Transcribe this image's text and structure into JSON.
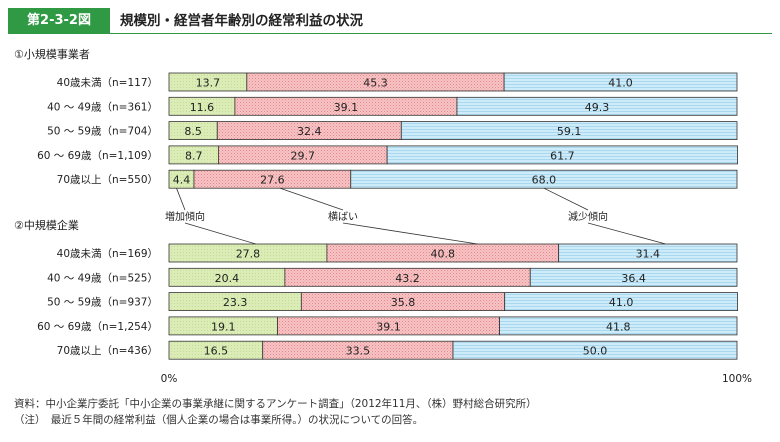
{
  "figure": {
    "tag": "第2-3-2図",
    "title": "規模別・経営者年齢別の経常利益の状況"
  },
  "chart_data": {
    "type": "bar",
    "orientation": "horizontal",
    "stacked": "100%",
    "xlim": [
      0,
      100
    ],
    "x_tick_labels": [
      "0%",
      "100%"
    ],
    "grid": false,
    "series": [
      {
        "name": "増加傾向",
        "color": "#d7eab0"
      },
      {
        "name": "横ばい",
        "color": "#f4b4b6"
      },
      {
        "name": "減少傾向",
        "color": "#bfe3f5"
      }
    ],
    "panels": [
      {
        "title": "①小規模事業者",
        "categories": [
          "40歳未満（n=117）",
          "40 ～ 49歳（n=361）",
          "50 ～ 59歳（n=704）",
          "60 ～ 69歳（n=1,109）",
          "70歳以上（n=550）"
        ],
        "values": [
          [
            13.7,
            45.3,
            41.0
          ],
          [
            11.6,
            39.1,
            49.3
          ],
          [
            8.5,
            32.4,
            59.1
          ],
          [
            8.7,
            29.7,
            61.7
          ],
          [
            4.4,
            27.6,
            68.0
          ]
        ],
        "labels": [
          [
            "13.7",
            "45.3",
            "41.0"
          ],
          [
            "11.6",
            "39.1",
            "49.3"
          ],
          [
            "8.5",
            "32.4",
            "59.1"
          ],
          [
            "8.7",
            "29.7",
            "61.7"
          ],
          [
            "4.4",
            "27.6",
            "68.0"
          ]
        ]
      },
      {
        "title": "②中規模企業",
        "categories": [
          "40歳未満（n=169）",
          "40 ～ 49歳（n=525）",
          "50 ～ 59歳（n=937）",
          "60 ～ 69歳（n=1,254）",
          "70歳以上（n=436）"
        ],
        "values": [
          [
            27.8,
            40.8,
            31.4
          ],
          [
            20.4,
            43.2,
            36.4
          ],
          [
            23.3,
            35.8,
            41.0
          ],
          [
            19.1,
            39.1,
            41.8
          ],
          [
            16.5,
            33.5,
            50.0
          ]
        ],
        "labels": [
          [
            "27.8",
            "40.8",
            "31.4"
          ],
          [
            "20.4",
            "43.2",
            "36.4"
          ],
          [
            "23.3",
            "35.8",
            "41.0"
          ],
          [
            "19.1",
            "39.1",
            "41.8"
          ],
          [
            "16.5",
            "33.5",
            "50.0"
          ]
        ]
      }
    ]
  },
  "notes": [
    "資料：中小企業庁委託「中小企業の事業承継に関するアンケート調査」（2012年11月、（株）野村総合研究所）",
    "（注）　最近５年間の経常利益（個人企業の場合は事業所得。）の状況についての回答。"
  ]
}
